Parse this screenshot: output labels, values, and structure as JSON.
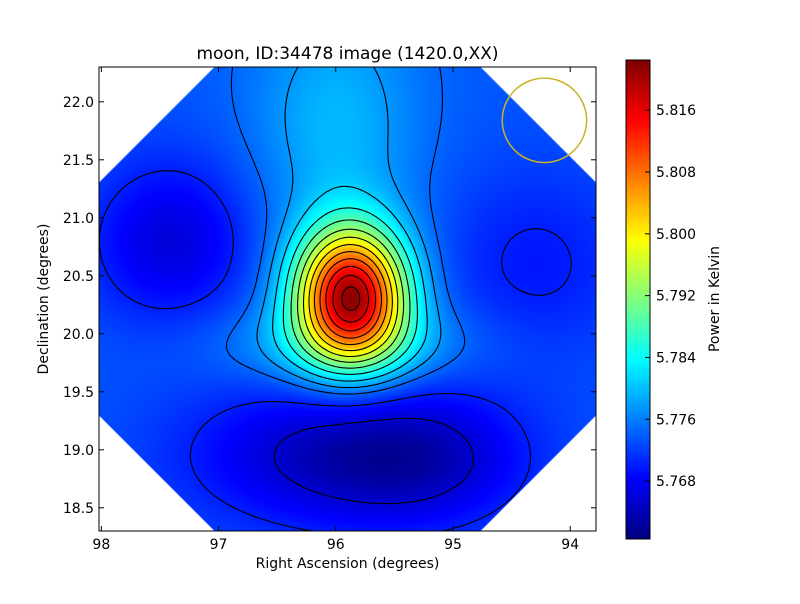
{
  "chart_data": {
    "type": "heatmap",
    "title": "moon, ID:34478 image (1420.0,XX)",
    "xlabel": "Right Ascension (degrees)",
    "ylabel": "Declination (degrees)",
    "xlim": [
      98.02,
      93.78
    ],
    "ylim": [
      18.3,
      22.3
    ],
    "x_ticks": [
      98,
      97,
      96,
      95,
      94
    ],
    "x_tick_labels": [
      "98",
      "97",
      "96",
      "95",
      "94"
    ],
    "y_ticks": [
      18.5,
      19.0,
      19.5,
      20.0,
      20.5,
      21.0,
      21.5,
      22.0
    ],
    "y_tick_labels": [
      "18.5",
      "19.0",
      "19.5",
      "20.0",
      "20.5",
      "21.0",
      "21.5",
      "22.0"
    ],
    "colorbar": {
      "label": "Power in Kelvin",
      "colormap": "jet",
      "vmin": 5.7605,
      "vmax": 5.8225,
      "ticks": [
        5.768,
        5.776,
        5.784,
        5.792,
        5.8,
        5.808,
        5.816
      ],
      "tick_labels": [
        "5.768",
        "5.776",
        "5.784",
        "5.792",
        "5.800",
        "5.808",
        "5.816"
      ]
    },
    "field": {
      "background": 5.7735,
      "peaks": [
        {
          "ra": 95.87,
          "dec": 20.33,
          "amplitude": 0.046,
          "sigma_ra": 0.33,
          "sigma_dec": 0.4
        },
        {
          "ra": 96.0,
          "dec": 21.8,
          "amplitude": 0.006,
          "sigma_ra": 0.5,
          "sigma_dec": 0.8
        },
        {
          "ra": 95.9,
          "dec": 19.9,
          "amplitude": 0.006,
          "sigma_ra": 0.75,
          "sigma_dec": 0.25
        }
      ],
      "troughs": [
        {
          "ra": 97.4,
          "dec": 20.8,
          "amplitude": 0.0075,
          "sigma_ra": 0.5,
          "sigma_dec": 0.5
        },
        {
          "ra": 96.0,
          "dec": 18.95,
          "amplitude": 0.009,
          "sigma_ra": 0.9,
          "sigma_dec": 0.45
        },
        {
          "ra": 95.2,
          "dec": 18.9,
          "amplitude": 0.005,
          "sigma_ra": 0.6,
          "sigma_dec": 0.4
        },
        {
          "ra": 94.3,
          "dec": 20.6,
          "amplitude": 0.004,
          "sigma_ra": 0.6,
          "sigma_dec": 0.6
        }
      ],
      "contour_levels": [
        5.7655,
        5.77,
        5.7745,
        5.7775,
        5.781,
        5.785,
        5.789,
        5.793,
        5.797,
        5.801,
        5.805,
        5.809,
        5.813,
        5.817,
        5.8205
      ]
    },
    "beam_circle": {
      "ra": 94.22,
      "dec": 21.84,
      "radius_deg": 0.36,
      "color": "#c8b426"
    },
    "grid": false,
    "legend": "none"
  }
}
